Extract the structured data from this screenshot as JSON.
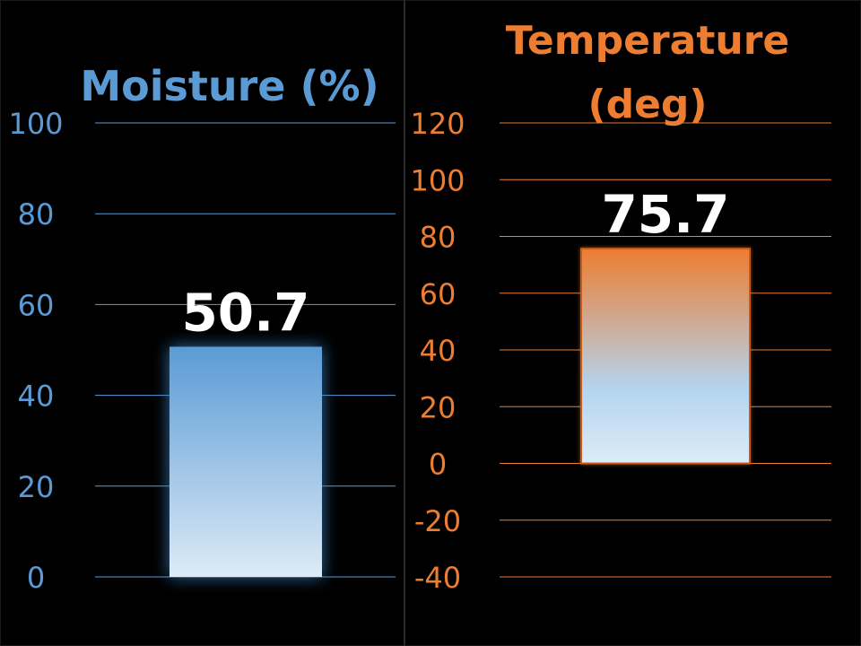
{
  "colors": {
    "moisture_accent": "#5b9bd5",
    "moisture_bar_top": "#5b9bd5",
    "moisture_bar_bottom": "#ddebf7",
    "temperature_accent": "#ed7d31",
    "temperature_bar_top": "#ed7d31",
    "temperature_bar_mid": "#b4d4ef",
    "temperature_bar_bottom": "#ddebf7",
    "background": "#000000",
    "value_label": "#ffffff"
  },
  "chart_data": [
    {
      "type": "bar",
      "title": "Moisture (%)",
      "xlabel": "",
      "ylabel": "",
      "categories": [
        ""
      ],
      "values": [
        50.7
      ],
      "data_label": "50.7",
      "ylim": [
        0,
        100
      ],
      "yticks": [
        100,
        80,
        60,
        40,
        20,
        0
      ],
      "ytick_labels": [
        "100",
        "80",
        "60",
        "40",
        "20",
        "0"
      ],
      "grid": true,
      "legend": "none"
    },
    {
      "type": "bar",
      "title_lines": [
        "Temperature",
        "(deg)"
      ],
      "xlabel": "",
      "ylabel": "",
      "categories": [
        ""
      ],
      "values": [
        75.7
      ],
      "data_label": "75.7",
      "ylim": [
        -40,
        120
      ],
      "yticks": [
        120,
        100,
        80,
        60,
        40,
        20,
        0,
        -20,
        -40
      ],
      "ytick_labels": [
        "120",
        "100",
        "80",
        "60",
        "40",
        "20",
        "0",
        "-20",
        "-40"
      ],
      "grid": true,
      "legend": "none"
    }
  ]
}
